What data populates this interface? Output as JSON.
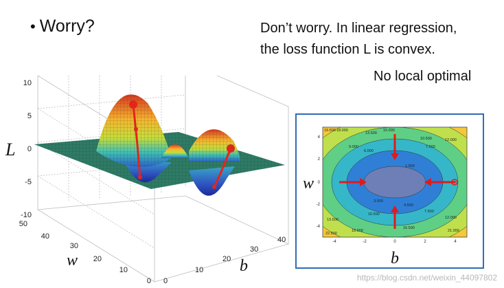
{
  "slide": {
    "bullet_symbol": "•",
    "bullet_text": "Worry?",
    "message_line1": "Don’t worry. In linear regression,",
    "message_line2": "the loss function L is convex.",
    "note": "No local optimal"
  },
  "surface_plot": {
    "axis_label_L": "L",
    "axis_label_w": "w",
    "axis_label_b": "b",
    "z_ticks": [
      "10",
      "5",
      "0",
      "-5",
      "-10"
    ],
    "w_ticks": [
      "50",
      "40",
      "30",
      "20",
      "10",
      "0"
    ],
    "b_ticks": [
      "0",
      "10",
      "20",
      "30",
      "40"
    ]
  },
  "contour_plot": {
    "axis_label_w": "w",
    "axis_label_b": "b",
    "x_ticks": [
      "-4",
      "-2",
      "0",
      "2",
      "4"
    ],
    "y_ticks": [
      "4",
      "2",
      "0",
      "-2",
      "-4"
    ],
    "level_labels": [
      "19.500",
      "18.000",
      "13.500",
      "15.000",
      "10.500",
      "12.000",
      "9.000",
      "6.000",
      "7.500",
      "1.500",
      "3.000",
      "4.500",
      "10.500",
      "7.500",
      "12.000",
      "13.500",
      "16.500",
      "18.000",
      "21.000",
      "22.500"
    ],
    "colors": [
      "#2b3fa0",
      "#2f7fd6",
      "#35b7c9",
      "#5fcf85",
      "#bfe04c",
      "#f3c83a",
      "#f08a2c",
      "#d9482a"
    ]
  },
  "watermark": "https://blog.csdn.net/weixin_44097802"
}
